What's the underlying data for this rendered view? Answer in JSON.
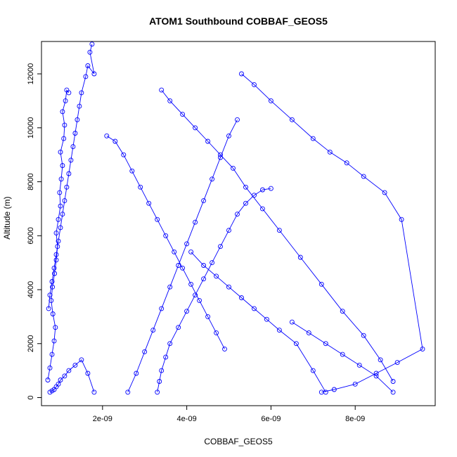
{
  "chart_data": {
    "type": "line",
    "title": "ATOM1 Southbound COBBAF_GEOS5",
    "xlabel": "COBBAF_GEOS5",
    "ylabel": "Altitude (m)",
    "xlim": [
      5.5e-10,
      9.9e-09
    ],
    "ylim": [
      -300,
      13200
    ],
    "x_ticks": [
      2e-09,
      4e-09,
      6e-09,
      8e-09
    ],
    "x_tick_labels": [
      "2e-09",
      "4e-09",
      "6e-09",
      "8e-09"
    ],
    "y_ticks": [
      0,
      2000,
      4000,
      6000,
      8000,
      10000,
      12000
    ],
    "y_tick_labels": [
      "0",
      "2000",
      "4000",
      "6000",
      "8000",
      "10000",
      "12000"
    ],
    "marker": "open-circle",
    "grid": false,
    "color": "#0000ff",
    "series": [
      {
        "x": [
          7e-10,
          7.5e-10,
          8e-10,
          8.5e-10,
          8.8e-10,
          8.2e-10,
          7.8e-10,
          8.1e-10,
          8.6e-10,
          9e-10,
          9.3e-10,
          9e-10,
          9.5e-10,
          1e-09,
          9.8e-10,
          1.02e-09,
          1.05e-09,
          1e-09,
          1.08e-09,
          1.1e-09,
          1.05e-09,
          1.12e-09,
          1.15e-09,
          1.2e-09
        ],
        "y": [
          650,
          1100,
          1600,
          2100,
          2600,
          3100,
          3600,
          4100,
          4600,
          5100,
          5600,
          6100,
          6600,
          7100,
          7600,
          8100,
          8600,
          9100,
          9600,
          10100,
          10600,
          11000,
          11400,
          11300
        ]
      },
      {
        "x": [
          1.75e-09,
          1.7e-09,
          1.8e-09,
          1.65e-09,
          1.6e-09,
          1.5e-09,
          1.45e-09,
          1.4e-09,
          1.35e-09,
          1.3e-09,
          1.25e-09,
          1.2e-09,
          1.15e-09,
          1.1e-09,
          1.05e-09,
          1e-09,
          9.5e-10,
          9e-10,
          8.5e-10,
          8e-10,
          7.5e-10,
          7.2e-10
        ],
        "y": [
          13100,
          12800,
          12000,
          12300,
          11900,
          11300,
          10800,
          10300,
          9800,
          9300,
          8800,
          8300,
          7800,
          7300,
          6800,
          6300,
          5800,
          5300,
          4800,
          4300,
          3800,
          3300
        ]
      },
      {
        "x": [
          7.5e-10,
          8e-10,
          8.5e-10,
          9e-10,
          9.5e-10,
          1e-09,
          1.1e-09,
          1.2e-09,
          1.35e-09,
          1.5e-09,
          1.65e-09,
          1.8e-09
        ],
        "y": [
          200,
          250,
          300,
          400,
          500,
          650,
          800,
          1000,
          1200,
          1400,
          900,
          200
        ]
      },
      {
        "x": [
          3.3e-09,
          3.35e-09,
          3.4e-09,
          3.5e-09,
          3.6e-09,
          3.8e-09,
          4e-09,
          4.2e-09,
          4.4e-09,
          4.6e-09,
          4.8e-09,
          5e-09,
          5.2e-09,
          5.4e-09,
          5.6e-09,
          5.8e-09,
          6e-09
        ],
        "y": [
          200,
          600,
          1000,
          1500,
          2000,
          2600,
          3200,
          3800,
          4400,
          5000,
          5600,
          6200,
          6800,
          7200,
          7500,
          7700,
          7750
        ]
      },
      {
        "x": [
          3.4e-09,
          3.6e-09,
          3.9e-09,
          4.2e-09,
          4.5e-09,
          4.8e-09,
          5.1e-09,
          5.4e-09,
          5.8e-09,
          6.2e-09,
          6.7e-09,
          7.2e-09,
          7.7e-09,
          8.2e-09,
          8.6e-09,
          8.9e-09
        ],
        "y": [
          11400,
          11000,
          10500,
          10000,
          9500,
          9000,
          8500,
          7800,
          7000,
          6200,
          5200,
          4200,
          3200,
          2300,
          1400,
          600
        ]
      },
      {
        "x": [
          5.3e-09,
          5.6e-09,
          6e-09,
          6.5e-09,
          7e-09,
          7.4e-09,
          7.8e-09,
          8.2e-09,
          8.7e-09,
          9.1e-09,
          9.6e-09,
          9e-09,
          8.5e-09,
          8e-09,
          7.5e-09,
          7.2e-09
        ],
        "y": [
          12000,
          11600,
          11000,
          10300,
          9600,
          9100,
          8700,
          8200,
          7600,
          6600,
          1800,
          1300,
          900,
          500,
          300,
          200
        ]
      },
      {
        "x": [
          2.1e-09,
          2.3e-09,
          2.5e-09,
          2.7e-09,
          2.9e-09,
          3.1e-09,
          3.3e-09,
          3.5e-09,
          3.7e-09,
          3.9e-09,
          4.1e-09,
          4.3e-09,
          4.5e-09,
          4.7e-09,
          4.9e-09
        ],
        "y": [
          9700,
          9500,
          9000,
          8400,
          7800,
          7200,
          6600,
          6000,
          5400,
          4800,
          4200,
          3600,
          3000,
          2400,
          1800
        ]
      },
      {
        "x": [
          2.6e-09,
          2.8e-09,
          3e-09,
          3.2e-09,
          3.4e-09,
          3.6e-09,
          3.8e-09,
          4e-09,
          4.2e-09,
          4.4e-09,
          4.6e-09,
          4.8e-09,
          5e-09,
          5.2e-09
        ],
        "y": [
          200,
          900,
          1700,
          2500,
          3300,
          4100,
          4900,
          5700,
          6500,
          7300,
          8100,
          8900,
          9700,
          10300
        ]
      },
      {
        "x": [
          6.5e-09,
          6.9e-09,
          7.3e-09,
          7.7e-09,
          8.1e-09,
          8.5e-09,
          8.9e-09
        ],
        "y": [
          2800,
          2400,
          2000,
          1600,
          1200,
          800,
          200
        ]
      },
      {
        "x": [
          4.1e-09,
          4.4e-09,
          4.7e-09,
          5e-09,
          5.3e-09,
          5.6e-09,
          5.9e-09,
          6.2e-09,
          6.6e-09,
          7e-09,
          7.3e-09
        ],
        "y": [
          5400,
          4900,
          4500,
          4100,
          3700,
          3300,
          2900,
          2500,
          2000,
          1000,
          200
        ]
      }
    ]
  }
}
